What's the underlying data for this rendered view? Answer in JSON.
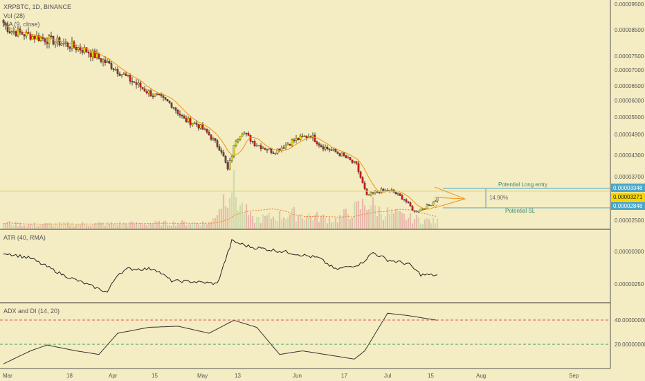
{
  "header": {
    "symbol": "XRPBTC, 1D, BINANCE",
    "vol_label": "Vol (28)",
    "ma_label": "MA (9, close)",
    "atr_label": "ATR (40, RMA)",
    "adx_label": "ADX and DI (14, 20)"
  },
  "annotations": {
    "long_entry_label": "Potential Long entry",
    "sl_label": "Potential SL",
    "percent_label": "14.90%"
  },
  "price_axis": {
    "ticks": [
      "0.00009500",
      "0.00008500",
      "0.00007500",
      "0.00007000",
      "0.00006500",
      "0.00006000",
      "0.00005500",
      "0.00004900",
      "0.00004300",
      "0.00003700",
      "0.00002500"
    ],
    "badges": [
      "0.00003348",
      "0.00003271",
      "0.00002848"
    ]
  },
  "atr_axis": {
    "ticks": [
      "0.00000300",
      "0.00000250"
    ]
  },
  "adx_axis": {
    "ticks": [
      "40.00000000",
      "20.00000000"
    ]
  },
  "time_axis": {
    "labels": [
      "Mar",
      "18",
      "Apr",
      "15",
      "May",
      "13",
      "Jun",
      "17",
      "Jul",
      "15",
      "Aug",
      "Sep"
    ]
  },
  "colors": {
    "background": "#f4ecc2",
    "up": "#f0f000",
    "down": "#d81b1b",
    "ma": "#e8961e",
    "long_line": "#e8d36a",
    "sl_line": "#4aa6c9",
    "price_badge": "#f7d700",
    "dashed_red": "#e05252",
    "dashed_green": "#3f9d5c"
  },
  "chart_data": {
    "type": "candlestick",
    "title": "XRPBTC, 1D, BINANCE",
    "price_anchors": [
      [
        0,
        8.95e-05
      ],
      [
        3,
        8.7e-05
      ],
      [
        14,
        8.52e-05
      ],
      [
        27,
        8.32e-05
      ],
      [
        40,
        8.05e-05
      ],
      [
        52,
        7.56e-05
      ],
      [
        60,
        7.15e-05
      ],
      [
        70,
        6.7e-05
      ],
      [
        81,
        6.32e-05
      ],
      [
        87,
        5.82e-05
      ],
      [
        93,
        5.68e-05
      ],
      [
        99,
        5.34e-05
      ],
      [
        105,
        4.82e-05
      ],
      [
        108,
        4.2e-05
      ],
      [
        112,
        5.18e-05
      ],
      [
        115,
        5.45e-05
      ],
      [
        121,
        5.05e-05
      ],
      [
        130,
        4.78e-05
      ],
      [
        140,
        5.16e-05
      ],
      [
        148,
        5.32e-05
      ],
      [
        153,
        4.98e-05
      ],
      [
        163,
        4.68e-05
      ],
      [
        170,
        4.35e-05
      ],
      [
        175,
        3.35e-05
      ],
      [
        181,
        3.52e-05
      ],
      [
        187,
        3.52e-05
      ],
      [
        193,
        3.25e-05
      ],
      [
        198,
        2.84e-05
      ],
      [
        205,
        3.05e-05
      ],
      [
        209,
        3.29e-05
      ]
    ],
    "atr": [
      [
        0,
        3.1e-06
      ],
      [
        13,
        3e-06
      ],
      [
        29,
        2.7e-06
      ],
      [
        50,
        2.4e-06
      ],
      [
        55,
        2.72e-06
      ],
      [
        60,
        2.81e-06
      ],
      [
        73,
        2.81e-06
      ],
      [
        81,
        2.6e-06
      ],
      [
        90,
        2.59e-06
      ],
      [
        103,
        2.55e-06
      ],
      [
        110,
        3.3e-06
      ],
      [
        119,
        3.2e-06
      ],
      [
        138,
        3.1e-06
      ],
      [
        152,
        3e-06
      ],
      [
        160,
        2.8e-06
      ],
      [
        172,
        2.9e-06
      ],
      [
        178,
        3.1e-06
      ],
      [
        185,
        2.97e-06
      ],
      [
        195,
        2.9e-06
      ],
      [
        201,
        2.71e-06
      ],
      [
        209,
        2.7e-06
      ]
    ],
    "adx": [
      [
        0,
        4
      ],
      [
        13,
        15
      ],
      [
        21,
        20
      ],
      [
        35,
        15
      ],
      [
        46,
        12
      ],
      [
        55,
        30
      ],
      [
        70,
        35
      ],
      [
        84,
        36
      ],
      [
        99,
        30
      ],
      [
        111,
        41
      ],
      [
        122,
        35
      ],
      [
        133,
        12
      ],
      [
        144,
        15
      ],
      [
        155,
        12
      ],
      [
        169,
        8
      ],
      [
        174,
        15
      ],
      [
        185,
        47
      ],
      [
        195,
        45
      ],
      [
        209,
        41
      ]
    ],
    "volume": [
      [
        0,
        0.1
      ],
      [
        10,
        0.07
      ],
      [
        40,
        0.08
      ],
      [
        100,
        0.1
      ],
      [
        110,
        0.8
      ],
      [
        113,
        0.45
      ],
      [
        120,
        0.15
      ],
      [
        140,
        0.25
      ],
      [
        160,
        0.15
      ],
      [
        176,
        0.45
      ],
      [
        181,
        0.3
      ],
      [
        195,
        0.18
      ],
      [
        209,
        0.12
      ]
    ],
    "x_categories": [
      "Mar",
      "18",
      "Apr",
      "15",
      "May",
      "13",
      "Jun",
      "17",
      "Jul",
      "15",
      "Aug",
      "Sep"
    ],
    "y_range": [
      2.5e-05,
      9.5e-05
    ],
    "ma_period": 9,
    "adx_levels": [
      40,
      20
    ],
    "levels": {
      "long_entry": 3.348e-05,
      "current": 3.271e-05,
      "stop_loss": 2.848e-05
    }
  }
}
